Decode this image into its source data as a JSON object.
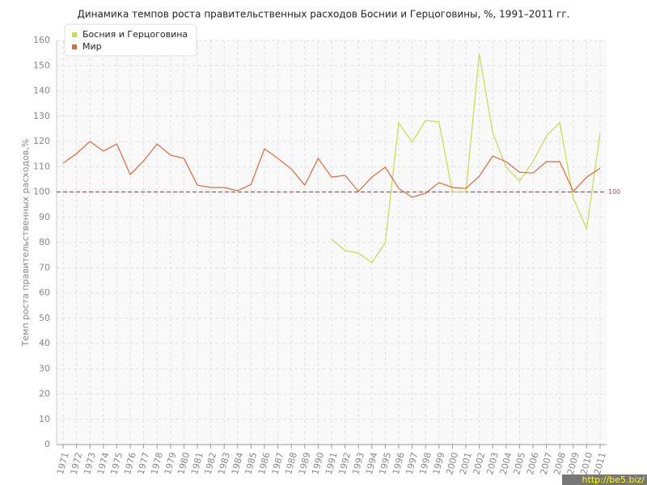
{
  "chart_data": {
    "type": "line",
    "title": "Динамика темпов роста правительственных расходов Боснии и Герцоговины, %, 1991–2011 гг.",
    "y_label": "Темп роста правительственных расходов,%",
    "categories": [
      "1971",
      "1972",
      "1973",
      "1974",
      "1975",
      "1976",
      "1977",
      "1978",
      "1979",
      "1980",
      "1981",
      "1982",
      "1983",
      "1984",
      "1985",
      "1986",
      "1987",
      "1988",
      "1989",
      "1990",
      "1991",
      "1992",
      "1993",
      "1994",
      "1995",
      "1996",
      "1997",
      "1998",
      "1999",
      "2000",
      "2001",
      "2002",
      "2003",
      "2004",
      "2005",
      "2006",
      "2007",
      "2008",
      "2009",
      "2010",
      "2011"
    ],
    "series": [
      {
        "name": "Босния и Герцоговина",
        "color": "#c3df4a",
        "values": [
          null,
          null,
          null,
          null,
          null,
          null,
          null,
          null,
          null,
          null,
          null,
          null,
          null,
          null,
          null,
          null,
          null,
          null,
          null,
          null,
          81.3,
          76.8,
          75.8,
          72,
          80,
          127.4,
          119.7,
          128.3,
          127.7,
          100,
          100,
          154.6,
          123.5,
          109.8,
          104.3,
          112,
          122.2,
          127.4,
          97.6,
          85.4,
          123.2
        ]
      },
      {
        "name": "Мир",
        "color": "#e0693c",
        "values": [
          111.4,
          115.2,
          120,
          116.2,
          119,
          106.9,
          112.3,
          119,
          114.6,
          113.3,
          102.7,
          101.8,
          101.8,
          100.5,
          103,
          117.1,
          113.3,
          109.1,
          102.7,
          113.3,
          105.9,
          106.6,
          100.2,
          105.9,
          109.8,
          101.4,
          97.9,
          99.5,
          103.7,
          101.8,
          101.4,
          106.2,
          114.2,
          112,
          107.8,
          107.5,
          112,
          112,
          100.2,
          105.9,
          109.4
        ]
      }
    ],
    "reference_line": {
      "value": 100,
      "color": "#a0506a"
    },
    "ylim": [
      0,
      160
    ],
    "yticks": [
      0,
      10,
      20,
      30,
      40,
      50,
      60,
      70,
      80,
      90,
      100,
      110,
      120,
      130,
      140,
      150,
      160
    ],
    "grid": true,
    "legend": "top-left",
    "watermark": "http://be5.biz/"
  }
}
